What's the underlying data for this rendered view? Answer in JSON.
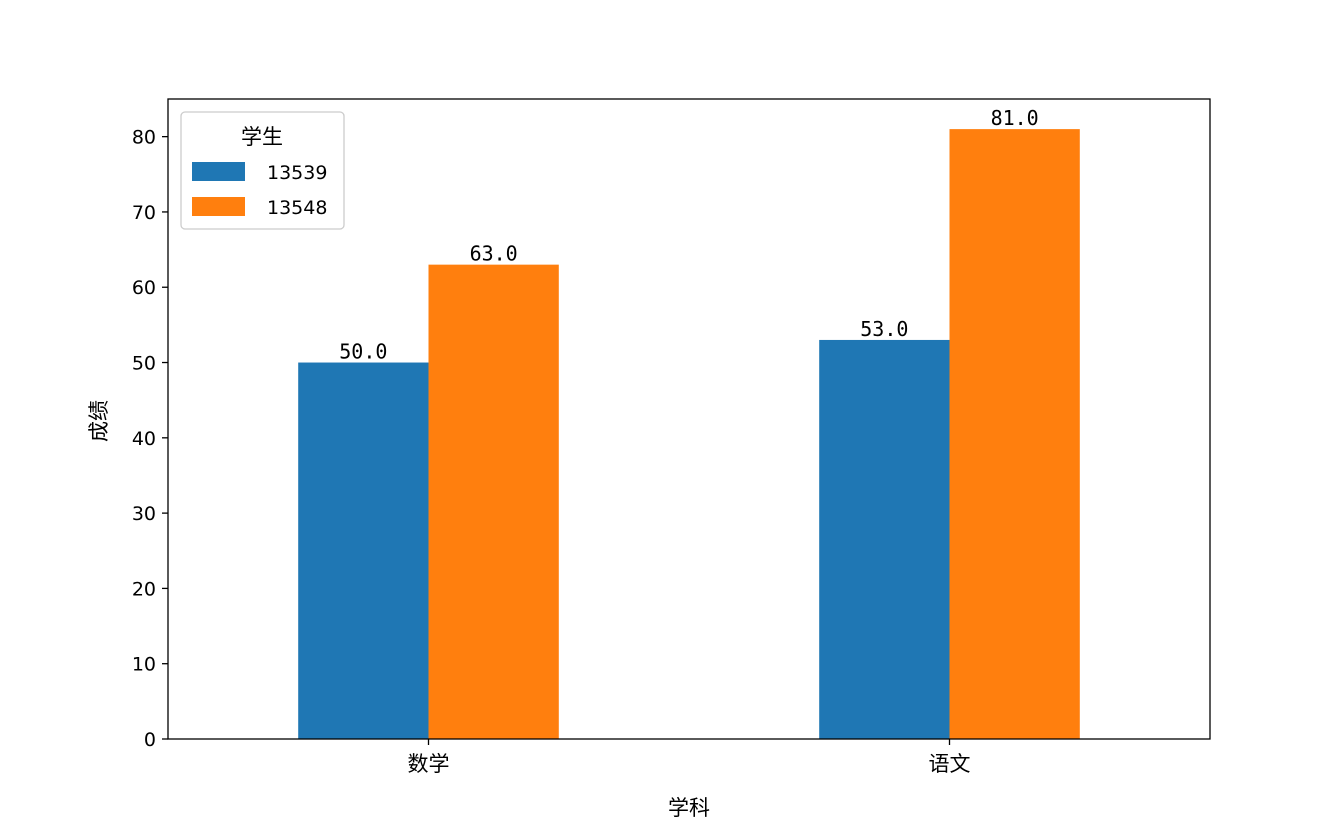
{
  "chart_data": {
    "type": "bar",
    "categories": [
      "数学",
      "语文"
    ],
    "series": [
      {
        "name": "13539",
        "color": "#1f77b4",
        "values": [
          50.0,
          53.0
        ]
      },
      {
        "name": "13548",
        "color": "#ff7f0e",
        "values": [
          63.0,
          81.0
        ]
      }
    ],
    "value_labels": [
      [
        "50.0",
        "53.0"
      ],
      [
        "63.0",
        "81.0"
      ]
    ],
    "xlabel": "学科",
    "ylabel": "成绩",
    "ylim": [
      0,
      85
    ],
    "yticks": [
      0,
      10,
      20,
      30,
      40,
      50,
      60,
      70,
      80
    ],
    "ytick_labels": [
      "0",
      "10",
      "20",
      "30",
      "40",
      "50",
      "60",
      "70",
      "80"
    ],
    "legend": {
      "title": "学生",
      "position": "upper-left"
    },
    "grid": false
  }
}
